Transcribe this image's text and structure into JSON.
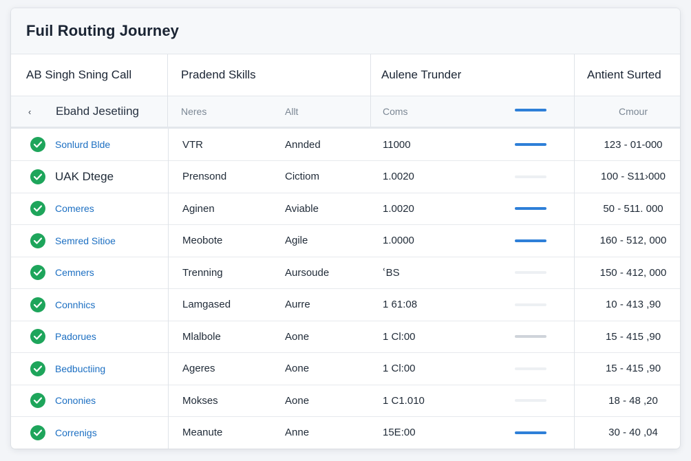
{
  "title": "Fuil Routing Journey",
  "columns": [
    "AB Singh Sning Call",
    "Pradend Skills",
    "Aulene Trunder",
    "Antient Surted"
  ],
  "subheader": {
    "label": "Ebahd Jesetiing",
    "col1": "Neres",
    "col2": "Allt",
    "col3": "Coms",
    "col4": "Cmour",
    "bar": "blue"
  },
  "rows": [
    {
      "name": "Sonlurd Blde",
      "style": "link",
      "skill": "VTR",
      "status": "Annded",
      "value": "11000",
      "bar": "blue",
      "range": "123 - 01-000"
    },
    {
      "name": "UAK Dtege",
      "style": "dark",
      "skill": "Prensond",
      "status": "Cictiom",
      "value": "1.0020",
      "bar": "light",
      "range": "100 - S11›000"
    },
    {
      "name": "Comeres",
      "style": "link",
      "skill": "Aginen",
      "status": "Aviable",
      "value": "1.0020",
      "bar": "blue",
      "range": "50 - 511. 000"
    },
    {
      "name": "Semred Sitioe",
      "style": "link",
      "skill": "Meobote",
      "status": "Agile",
      "value": "1.0000",
      "bar": "blue",
      "range": "160 - 512, 000"
    },
    {
      "name": "Cemners",
      "style": "link",
      "skill": "Trenning",
      "status": "Aursoude",
      "value": "ՙBS",
      "bar": "light",
      "range": "150 - 412, 000"
    },
    {
      "name": "Connhics",
      "style": "link",
      "skill": "Lamgased",
      "status": "Aurre",
      "value": "1 61:08",
      "bar": "light",
      "range": "10 - 413 ,90"
    },
    {
      "name": "Padorues",
      "style": "link",
      "skill": "Mlalbole",
      "status": "Aone",
      "value": "1 Cl:00",
      "bar": "grey",
      "range": "15 - 415 ,90"
    },
    {
      "name": "Bedbuctiing",
      "style": "link",
      "skill": "Ageres",
      "status": "Aone",
      "value": "1 Cl:00",
      "bar": "light",
      "range": "15 - 415 ,90"
    },
    {
      "name": "Cononies",
      "style": "link",
      "skill": "Mokses",
      "status": "Aone",
      "value": "1 C1.010",
      "bar": "light",
      "range": "18 - 48 ,20"
    },
    {
      "name": "Correnigs",
      "style": "link",
      "skill": "Meanute",
      "status": "Anne",
      "value": "15E:00",
      "bar": "blue",
      "range": "30 - 40 ,04"
    }
  ],
  "icons": {
    "back": "back-arrow-icon",
    "check": "check-circle-icon"
  },
  "colors": {
    "accent": "#2e7fd8",
    "success": "#1ea55b",
    "link": "#1c6fc2"
  }
}
